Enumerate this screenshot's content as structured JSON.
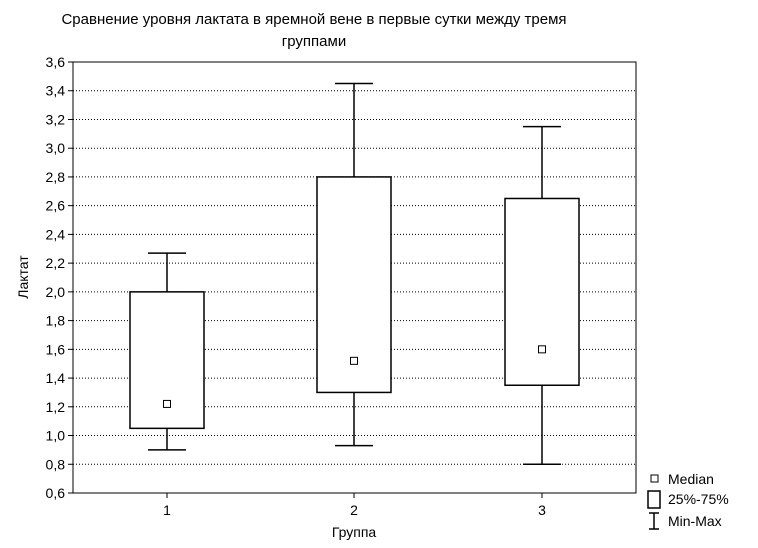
{
  "chart_data": {
    "type": "boxplot",
    "title_line1": "Сравнение уровня лактата в яремной вене в первые сутки между тремя",
    "title_line2": "группами",
    "xlabel": "Группа",
    "ylabel": "Лактат",
    "categories": [
      "1",
      "2",
      "3"
    ],
    "ylim": [
      0.6,
      3.6
    ],
    "yticks": [
      "0,6",
      "0,8",
      "1,0",
      "1,2",
      "1,4",
      "1,6",
      "1,8",
      "2,0",
      "2,2",
      "2,4",
      "2,6",
      "2,8",
      "3,0",
      "3,2",
      "3,4",
      "3,6"
    ],
    "ytick_values": [
      0.6,
      0.8,
      1.0,
      1.2,
      1.4,
      1.6,
      1.8,
      2.0,
      2.2,
      2.4,
      2.6,
      2.8,
      3.0,
      3.2,
      3.4,
      3.6
    ],
    "grid": true,
    "legend_position": "bottom-right",
    "boxes": [
      {
        "category": "1",
        "min": 0.9,
        "q1": 1.05,
        "median": 1.22,
        "q3": 2.0,
        "max": 2.27
      },
      {
        "category": "2",
        "min": 0.93,
        "q1": 1.3,
        "median": 1.52,
        "q3": 2.8,
        "max": 3.45
      },
      {
        "category": "3",
        "min": 0.8,
        "q1": 1.35,
        "median": 1.6,
        "q3": 2.65,
        "max": 3.15
      }
    ],
    "legend": [
      {
        "symbol": "median-square",
        "label": "Median"
      },
      {
        "symbol": "box",
        "label": "25%-75%"
      },
      {
        "symbol": "whisker",
        "label": "Min-Max"
      }
    ]
  }
}
